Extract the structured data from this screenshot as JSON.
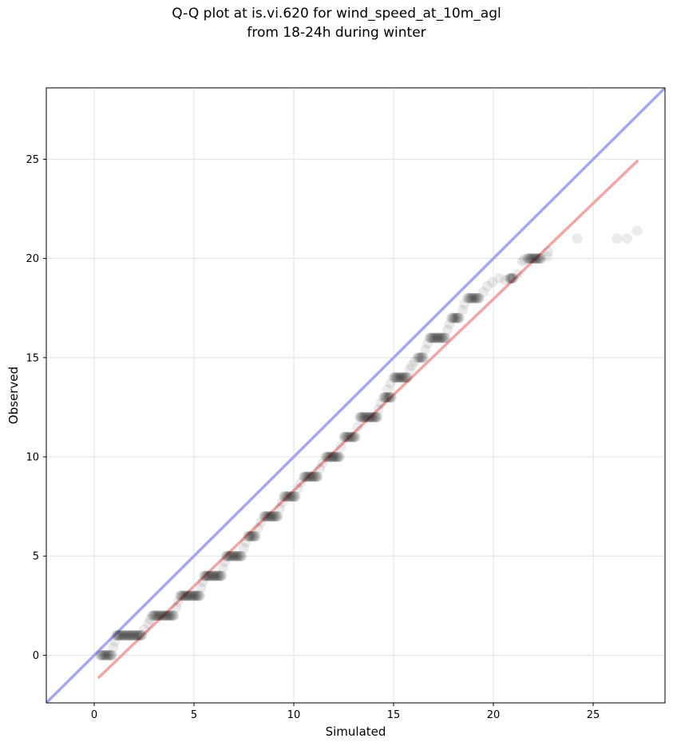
{
  "chart_data": {
    "type": "scatter",
    "title_lines": [
      "Q-Q plot at is.vi.620 for wind_speed_at_10m_agl",
      "from 18-24h during winter"
    ],
    "xlabel": "Simulated",
    "ylabel": "Observed",
    "xlim": [
      -2.4,
      28.6
    ],
    "ylim": [
      -2.4,
      28.6
    ],
    "xticks": [
      0,
      5,
      10,
      15,
      20,
      25
    ],
    "yticks": [
      0,
      5,
      10,
      15,
      20,
      25
    ],
    "grid": true,
    "colors": {
      "points": "#000000",
      "identity_line": "#a5a8f0",
      "fit_line": "#f2a6a6",
      "grid": "#e6e6e6"
    },
    "series": [
      {
        "kind": "reference-line",
        "x": [
          -2.4,
          28.6
        ],
        "y": [
          -2.4,
          28.6
        ]
      },
      {
        "kind": "fit-line",
        "x": [
          0.25,
          27.2
        ],
        "y": [
          -1.1,
          24.9
        ]
      },
      {
        "kind": "steps",
        "steps": [
          [
            0.3,
            0.9,
            0
          ],
          [
            1.1,
            2.4,
            1
          ],
          [
            2.9,
            4.0,
            2
          ],
          [
            4.3,
            5.3,
            3
          ],
          [
            5.5,
            6.4,
            4
          ],
          [
            6.6,
            7.4,
            5
          ],
          [
            7.7,
            8.1,
            6
          ],
          [
            8.5,
            9.2,
            7
          ],
          [
            9.5,
            10.1,
            8
          ],
          [
            10.5,
            11.2,
            9
          ],
          [
            11.6,
            12.3,
            10
          ],
          [
            12.5,
            13.1,
            11
          ],
          [
            13.3,
            14.2,
            12
          ],
          [
            14.5,
            14.9,
            13
          ],
          [
            15.0,
            15.7,
            14
          ],
          [
            16.2,
            16.5,
            15
          ],
          [
            16.8,
            17.6,
            16
          ],
          [
            17.9,
            18.3,
            17
          ],
          [
            18.7,
            19.3,
            18
          ],
          [
            20.8,
            21.0,
            19
          ],
          [
            21.7,
            22.4,
            20
          ]
        ]
      },
      {
        "kind": "points",
        "x": [
          0.95,
          1.05,
          2.5,
          2.7,
          2.8,
          4.1,
          4.2,
          5.35,
          5.45,
          6.45,
          6.55,
          7.5,
          7.6,
          8.2,
          8.35,
          9.3,
          9.4,
          10.2,
          10.35,
          11.3,
          11.45,
          12.35,
          13.2,
          14.25,
          14.35,
          14.7,
          14.85,
          15.8,
          15.9,
          16.05,
          16.6,
          16.7,
          17.7,
          17.8,
          18.45,
          18.55,
          19.5,
          19.7,
          19.95,
          20.3,
          20.6,
          21.2,
          21.45,
          21.55,
          22.7,
          22.75,
          24.2,
          26.2,
          26.7,
          27.2
        ],
        "y": [
          0.4,
          0.7,
          1.3,
          1.6,
          1.8,
          2.4,
          2.7,
          3.4,
          3.7,
          4.4,
          4.7,
          5.4,
          5.7,
          6.4,
          6.7,
          7.4,
          7.7,
          8.4,
          8.7,
          9.4,
          9.7,
          10.5,
          11.5,
          12.4,
          12.7,
          13.4,
          13.7,
          14.4,
          14.6,
          14.8,
          15.4,
          15.7,
          16.4,
          16.7,
          17.4,
          17.7,
          18.3,
          18.6,
          18.8,
          19.0,
          18.9,
          19.2,
          19.85,
          19.95,
          20.1,
          20.35,
          21.0,
          21.0,
          21.0,
          21.4
        ]
      }
    ]
  }
}
